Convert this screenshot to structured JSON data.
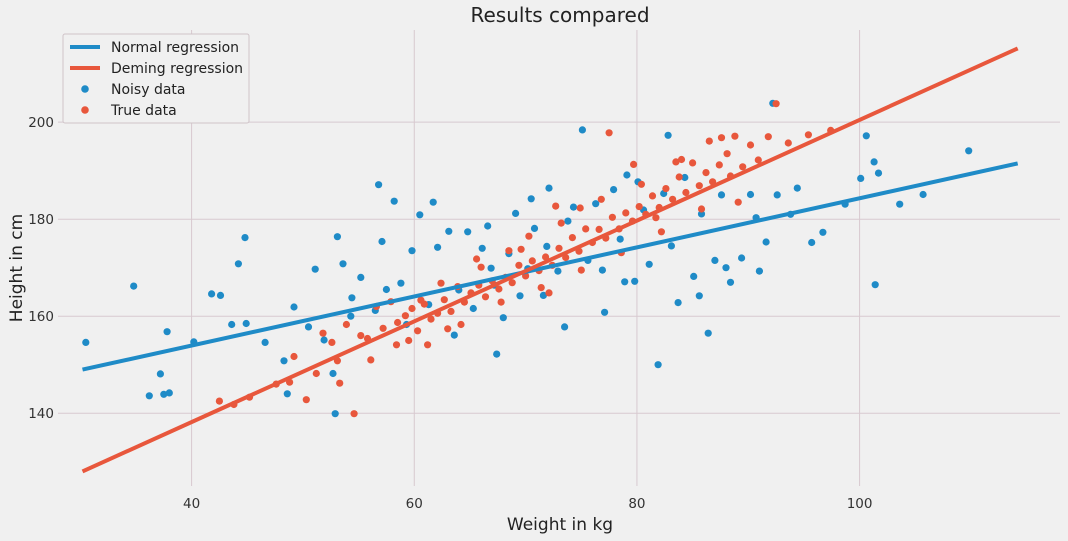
{
  "chart_data": {
    "type": "scatter",
    "title": "Results compared",
    "xlabel": "Weight in kg",
    "ylabel": "Height in cm",
    "xlim": [
      28,
      118
    ],
    "ylim": [
      125,
      219
    ],
    "xticks": [
      40,
      60,
      80,
      100
    ],
    "yticks": [
      140,
      160,
      180,
      200
    ],
    "grid": true,
    "legend_position": "top-left",
    "background": "#f0f0f0",
    "lines": [
      {
        "name": "Normal regression",
        "color": "#1f8bc7",
        "x": [
          30.2,
          114.2
        ],
        "y": [
          149.0,
          191.5
        ]
      },
      {
        "name": "Deming regression",
        "color": "#e8573c",
        "x": [
          30.2,
          114.2
        ],
        "y": [
          128.0,
          215.2
        ]
      }
    ],
    "scatter": [
      {
        "name": "Noisy data",
        "color": "#1f8bc7",
        "points": [
          [
            30.5,
            154.6
          ],
          [
            34.8,
            166.2
          ],
          [
            36.2,
            143.6
          ],
          [
            37.2,
            148.1
          ],
          [
            37.5,
            143.9
          ],
          [
            37.8,
            156.8
          ],
          [
            38.0,
            144.2
          ],
          [
            40.2,
            154.7
          ],
          [
            41.8,
            164.6
          ],
          [
            42.6,
            164.3
          ],
          [
            43.6,
            158.3
          ],
          [
            44.2,
            170.8
          ],
          [
            44.8,
            176.2
          ],
          [
            44.9,
            158.5
          ],
          [
            46.6,
            154.6
          ],
          [
            48.3,
            150.8
          ],
          [
            48.6,
            144.0
          ],
          [
            49.2,
            161.9
          ],
          [
            50.5,
            157.8
          ],
          [
            51.1,
            169.7
          ],
          [
            51.9,
            155.1
          ],
          [
            52.7,
            148.2
          ],
          [
            52.9,
            139.9
          ],
          [
            53.1,
            176.4
          ],
          [
            53.6,
            170.8
          ],
          [
            54.3,
            160.0
          ],
          [
            55.2,
            168.0
          ],
          [
            56.5,
            161.2
          ],
          [
            56.8,
            187.1
          ],
          [
            57.5,
            165.5
          ],
          [
            58.2,
            183.7
          ],
          [
            58.8,
            166.8
          ],
          [
            59.3,
            158.3
          ],
          [
            59.8,
            173.5
          ],
          [
            60.5,
            180.9
          ],
          [
            61.3,
            162.4
          ],
          [
            62.1,
            174.2
          ],
          [
            63.1,
            177.5
          ],
          [
            64.0,
            165.4
          ],
          [
            64.8,
            177.4
          ],
          [
            65.3,
            161.6
          ],
          [
            66.1,
            174.0
          ],
          [
            66.6,
            178.6
          ],
          [
            67.2,
            166.4
          ],
          [
            68.0,
            159.7
          ],
          [
            68.5,
            172.9
          ],
          [
            69.1,
            181.2
          ],
          [
            70.2,
            169.8
          ],
          [
            70.8,
            178.1
          ],
          [
            71.6,
            164.3
          ],
          [
            72.1,
            186.4
          ],
          [
            72.9,
            169.3
          ],
          [
            73.5,
            157.8
          ],
          [
            74.3,
            182.5
          ],
          [
            75.1,
            198.4
          ],
          [
            75.6,
            171.5
          ],
          [
            76.3,
            183.2
          ],
          [
            77.1,
            160.8
          ],
          [
            77.9,
            186.1
          ],
          [
            78.5,
            175.9
          ],
          [
            79.1,
            189.1
          ],
          [
            79.8,
            167.2
          ],
          [
            80.6,
            181.9
          ],
          [
            81.1,
            170.7
          ],
          [
            81.9,
            150.0
          ],
          [
            82.4,
            185.3
          ],
          [
            83.1,
            174.5
          ],
          [
            83.7,
            162.8
          ],
          [
            84.3,
            188.6
          ],
          [
            85.1,
            168.2
          ],
          [
            85.8,
            181.1
          ],
          [
            86.4,
            156.5
          ],
          [
            87.0,
            171.5
          ],
          [
            87.6,
            185.0
          ],
          [
            88.4,
            167.0
          ],
          [
            89.4,
            172.0
          ],
          [
            90.2,
            185.1
          ],
          [
            91.0,
            169.3
          ],
          [
            91.6,
            175.3
          ],
          [
            92.2,
            203.9
          ],
          [
            92.6,
            185.0
          ],
          [
            93.8,
            181.0
          ],
          [
            94.4,
            186.4
          ],
          [
            95.7,
            175.2
          ],
          [
            96.7,
            177.3
          ],
          [
            98.7,
            183.1
          ],
          [
            100.1,
            188.4
          ],
          [
            100.6,
            197.2
          ],
          [
            101.3,
            191.8
          ],
          [
            101.4,
            166.5
          ],
          [
            101.7,
            189.5
          ],
          [
            103.6,
            183.1
          ],
          [
            105.7,
            185.1
          ],
          [
            109.8,
            194.1
          ],
          [
            54.4,
            163.8
          ],
          [
            61.7,
            183.5
          ],
          [
            67.4,
            152.2
          ],
          [
            69.5,
            164.2
          ],
          [
            71.9,
            174.4
          ],
          [
            73.8,
            179.6
          ],
          [
            78.9,
            167.1
          ],
          [
            82.8,
            197.3
          ],
          [
            85.6,
            164.2
          ],
          [
            90.7,
            180.3
          ],
          [
            57.1,
            175.4
          ],
          [
            63.6,
            156.1
          ],
          [
            66.9,
            169.9
          ],
          [
            70.5,
            184.2
          ],
          [
            76.9,
            169.5
          ],
          [
            80.1,
            187.7
          ],
          [
            88.0,
            170.0
          ]
        ]
      },
      {
        "name": "True data",
        "color": "#e8573c",
        "points": [
          [
            42.5,
            142.5
          ],
          [
            43.8,
            141.8
          ],
          [
            45.2,
            143.3
          ],
          [
            47.6,
            146.0
          ],
          [
            48.8,
            146.4
          ],
          [
            49.2,
            151.7
          ],
          [
            50.3,
            142.8
          ],
          [
            51.2,
            148.2
          ],
          [
            51.8,
            156.5
          ],
          [
            52.6,
            154.6
          ],
          [
            53.1,
            150.8
          ],
          [
            53.9,
            158.3
          ],
          [
            54.6,
            139.9
          ],
          [
            55.2,
            156.0
          ],
          [
            55.8,
            155.4
          ],
          [
            56.6,
            162.0
          ],
          [
            57.2,
            157.5
          ],
          [
            57.9,
            163.0
          ],
          [
            58.5,
            158.7
          ],
          [
            59.2,
            160.1
          ],
          [
            59.8,
            161.6
          ],
          [
            60.3,
            157.0
          ],
          [
            60.9,
            162.5
          ],
          [
            61.5,
            159.4
          ],
          [
            62.1,
            160.6
          ],
          [
            62.7,
            163.4
          ],
          [
            63.3,
            161.0
          ],
          [
            63.9,
            166.1
          ],
          [
            64.5,
            162.9
          ],
          [
            65.1,
            164.8
          ],
          [
            65.8,
            166.4
          ],
          [
            66.4,
            164.0
          ],
          [
            67.0,
            167.3
          ],
          [
            67.6,
            165.6
          ],
          [
            68.2,
            168.0
          ],
          [
            68.8,
            166.9
          ],
          [
            69.4,
            170.5
          ],
          [
            70.0,
            168.3
          ],
          [
            70.6,
            171.4
          ],
          [
            71.2,
            169.4
          ],
          [
            71.8,
            172.2
          ],
          [
            72.4,
            170.5
          ],
          [
            73.0,
            174.0
          ],
          [
            73.6,
            172.1
          ],
          [
            74.2,
            176.2
          ],
          [
            74.8,
            173.4
          ],
          [
            75.4,
            178.0
          ],
          [
            76.0,
            175.2
          ],
          [
            76.6,
            177.9
          ],
          [
            77.2,
            176.1
          ],
          [
            77.8,
            180.4
          ],
          [
            78.4,
            178.0
          ],
          [
            79.0,
            181.3
          ],
          [
            79.6,
            179.6
          ],
          [
            80.2,
            182.6
          ],
          [
            80.8,
            181.0
          ],
          [
            81.4,
            184.8
          ],
          [
            82.0,
            182.4
          ],
          [
            82.6,
            186.3
          ],
          [
            83.2,
            184.1
          ],
          [
            83.8,
            188.7
          ],
          [
            84.4,
            185.5
          ],
          [
            85.0,
            191.6
          ],
          [
            85.6,
            186.9
          ],
          [
            86.2,
            189.6
          ],
          [
            86.8,
            187.7
          ],
          [
            87.4,
            191.2
          ],
          [
            88.1,
            193.5
          ],
          [
            88.8,
            197.1
          ],
          [
            89.5,
            190.8
          ],
          [
            90.2,
            195.3
          ],
          [
            90.9,
            192.2
          ],
          [
            91.8,
            197.0
          ],
          [
            92.5,
            203.8
          ],
          [
            93.6,
            195.7
          ],
          [
            95.4,
            197.4
          ],
          [
            97.4,
            198.3
          ],
          [
            53.3,
            146.2
          ],
          [
            56.1,
            151.0
          ],
          [
            58.4,
            154.1
          ],
          [
            60.6,
            163.3
          ],
          [
            62.4,
            166.8
          ],
          [
            64.2,
            158.3
          ],
          [
            66.0,
            170.1
          ],
          [
            67.8,
            162.9
          ],
          [
            69.6,
            173.8
          ],
          [
            71.4,
            165.9
          ],
          [
            73.2,
            179.2
          ],
          [
            75.0,
            169.5
          ],
          [
            76.8,
            184.1
          ],
          [
            78.6,
            173.1
          ],
          [
            80.4,
            187.2
          ],
          [
            82.2,
            177.4
          ],
          [
            84.0,
            192.3
          ],
          [
            85.8,
            182.1
          ],
          [
            87.6,
            196.8
          ],
          [
            89.1,
            183.5
          ],
          [
            72.7,
            182.7
          ],
          [
            74.9,
            182.3
          ],
          [
            77.5,
            197.8
          ],
          [
            79.7,
            191.3
          ],
          [
            65.6,
            171.8
          ],
          [
            63.0,
            157.4
          ],
          [
            59.5,
            155.0
          ],
          [
            61.2,
            154.1
          ],
          [
            68.5,
            173.5
          ],
          [
            70.3,
            176.5
          ],
          [
            72.1,
            164.8
          ],
          [
            81.7,
            180.3
          ],
          [
            83.5,
            191.8
          ],
          [
            86.5,
            196.1
          ],
          [
            88.4,
            188.9
          ]
        ]
      }
    ]
  }
}
